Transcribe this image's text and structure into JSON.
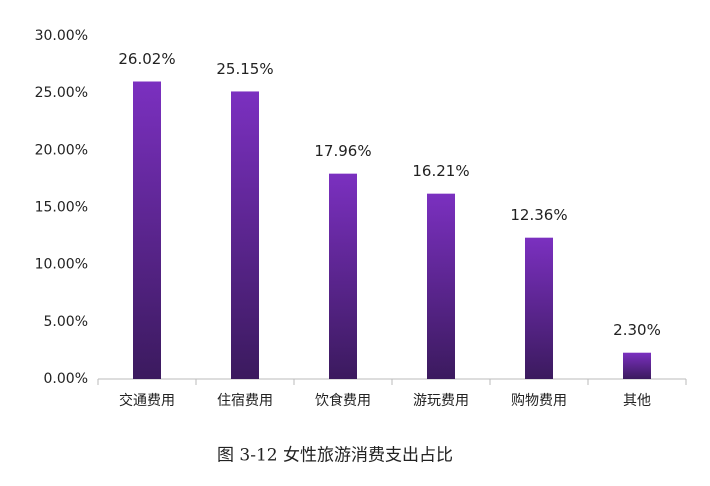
{
  "chart_data": {
    "type": "bar",
    "categories": [
      "交通费用",
      "住宿费用",
      "饮食费用",
      "游玩费用",
      "购物费用",
      "其他"
    ],
    "values": [
      26.02,
      25.15,
      17.96,
      16.21,
      12.36,
      2.3
    ],
    "value_labels": [
      "26.02%",
      "25.15%",
      "17.96%",
      "16.21%",
      "12.36%",
      "2.30%"
    ],
    "color": "#7b30c0",
    "ylim": [
      0,
      30
    ],
    "yticks": [
      {
        "value": 0,
        "label": "0.00%"
      },
      {
        "value": 5,
        "label": "5.00%"
      },
      {
        "value": 10,
        "label": "10.00%"
      },
      {
        "value": 15,
        "label": "15.00%"
      },
      {
        "value": 20,
        "label": "20.00%"
      },
      {
        "value": 25,
        "label": "25.00%"
      },
      {
        "value": 30,
        "label": "30.00%"
      }
    ],
    "grid": false,
    "caption": "图 3-12  女性旅游消费支出占比"
  }
}
